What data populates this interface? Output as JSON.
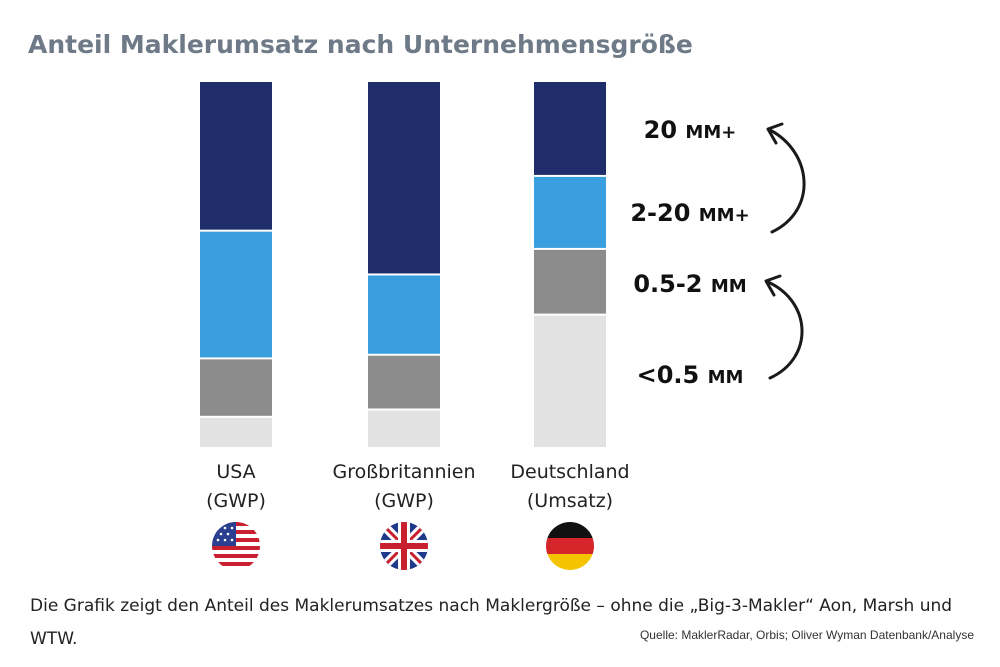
{
  "chart_data": {
    "type": "bar",
    "stacked": true,
    "title": "Anteil Maklerumsatz nach Unternehmensgröße",
    "categories": [
      [
        "USA",
        "(GWP)"
      ],
      [
        "Großbritannien",
        "(GWP)"
      ],
      [
        "Deutschland",
        "(Umsatz)"
      ]
    ],
    "flags": [
      "us-flag-icon",
      "uk-flag-icon",
      "germany-flag-icon"
    ],
    "ylim": [
      0,
      100
    ],
    "series": [
      {
        "name": "20 MM+",
        "color": "#1f2d6b",
        "values": [
          41,
          53,
          26
        ]
      },
      {
        "name": "2-20 MM+",
        "color": "#3a9fdf",
        "values": [
          35,
          22,
          20
        ]
      },
      {
        "name": "0.5-2 MM",
        "color": "#8c8c8c",
        "values": [
          16,
          15,
          18
        ]
      },
      {
        "name": "<0.5 MM",
        "color": "#e2e2e2",
        "values": [
          8,
          10,
          36
        ]
      }
    ],
    "legend": {
      "placement": "right",
      "entries": [
        {
          "main": "20",
          "unit": "MM+"
        },
        {
          "main": "2-20",
          "unit": "MM+"
        },
        {
          "main": "0.5-2",
          "unit": "MM"
        },
        {
          "main": "<0.5",
          "unit": "MM"
        }
      ]
    },
    "grid": false
  },
  "caption": "Die Grafik zeigt den Anteil des Maklerumsatzes nach Maklergröße – ohne die „Big-3-Makler“ Aon, Marsh und WTW.",
  "source": "Quelle: MaklerRadar, Orbis; Oliver Wyman Datenbank/Analyse"
}
